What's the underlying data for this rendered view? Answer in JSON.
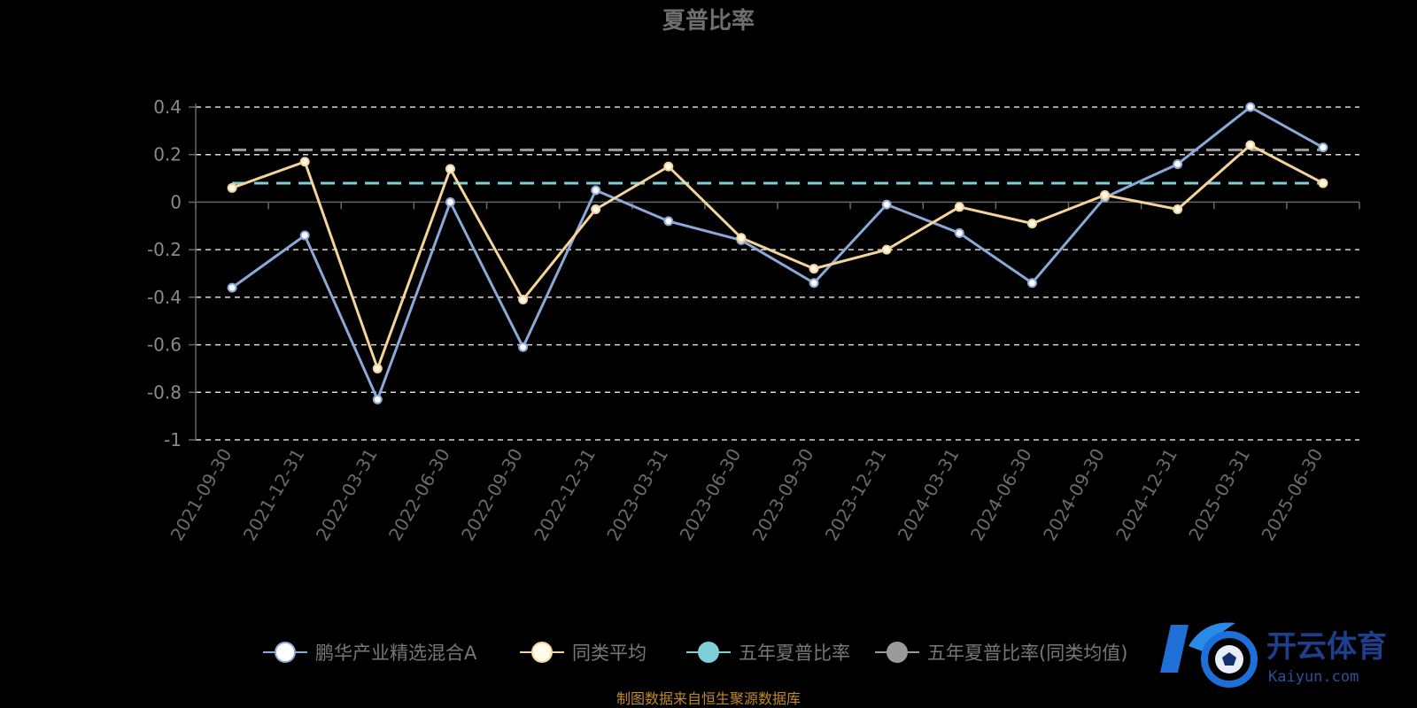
{
  "chart_data": {
    "type": "line",
    "title": "夏普比率",
    "categories": [
      "2021-09-30",
      "2021-12-31",
      "2022-03-31",
      "2022-06-30",
      "2022-09-30",
      "2022-12-31",
      "2023-03-31",
      "2023-06-30",
      "2023-09-30",
      "2023-12-31",
      "2024-03-31",
      "2024-06-30",
      "2024-09-30",
      "2024-12-31",
      "2025-03-31",
      "2025-06-30"
    ],
    "yticks": [
      "0.4",
      "0.2",
      "0",
      "-0.2",
      "-0.4",
      "-0.6",
      "-0.8",
      "-1"
    ],
    "ylim": [
      -1,
      0.4
    ],
    "grid": true,
    "legend_position": "bottom",
    "series": [
      {
        "name": "鹏华产业精选混合A",
        "color": "#8aa8d8",
        "marker_fill": "#ffffff",
        "values": [
          -0.36,
          -0.14,
          -0.83,
          0.0,
          -0.61,
          0.05,
          -0.08,
          -0.16,
          -0.34,
          -0.01,
          -0.13,
          -0.34,
          0.02,
          0.16,
          0.4,
          0.23
        ]
      },
      {
        "name": "同类平均",
        "color": "#f5d49a",
        "marker_fill": "#fffbea",
        "values": [
          0.06,
          0.17,
          -0.7,
          0.14,
          -0.41,
          -0.03,
          0.15,
          -0.15,
          -0.28,
          -0.2,
          -0.02,
          -0.09,
          0.03,
          -0.03,
          0.24,
          0.08
        ]
      },
      {
        "name": "五年夏普比率",
        "color": "#7ecfd8",
        "marker_fill": "#7ecfd8",
        "reference": 0.08
      },
      {
        "name": "五年夏普比率(同类均值)",
        "color": "#9a9a9a",
        "marker_fill": "#9a9a9a",
        "reference": 0.22
      }
    ]
  },
  "source": "制图数据来自恒生聚源数据库",
  "watermark": {
    "cn": "开云体育",
    "en": "Kaiyun.com"
  }
}
